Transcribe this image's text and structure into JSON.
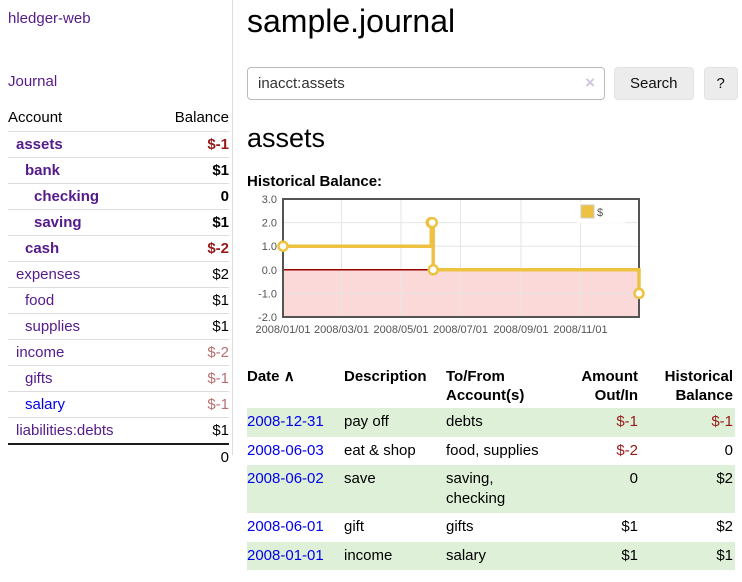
{
  "colors": {
    "link_visited": "#551A8B",
    "link_unvisited": "#0000EE",
    "negative_strong": "#971a1a",
    "negative_muted": "#b87070",
    "table_stripe": "#dff0d8",
    "series_gold": "#edc240",
    "zero_line": "#990000",
    "negative_region": "#fbd9d9",
    "chart_border": "#545454",
    "grid_line": "#e6e6e6"
  },
  "sidebar": {
    "brand": "hledger-web",
    "nav": [
      {
        "label": "Journal"
      }
    ],
    "table": {
      "headers": {
        "account": "Account",
        "balance": "Balance"
      },
      "accounts": [
        {
          "name": "assets",
          "depth": 0,
          "balance": "$-1",
          "emph": true,
          "balance_tone": "neg-strong",
          "link_tone": "visited"
        },
        {
          "name": "bank",
          "depth": 1,
          "balance": "$1",
          "emph": true,
          "balance_tone": "",
          "link_tone": "visited"
        },
        {
          "name": "checking",
          "depth": 2,
          "balance": "0",
          "emph": true,
          "balance_tone": "",
          "link_tone": "visited"
        },
        {
          "name": "saving",
          "depth": 2,
          "balance": "$1",
          "emph": true,
          "balance_tone": "",
          "link_tone": "visited"
        },
        {
          "name": "cash",
          "depth": 1,
          "balance": "$-2",
          "emph": true,
          "balance_tone": "neg-strong",
          "link_tone": "visited"
        },
        {
          "name": "expenses",
          "depth": 0,
          "balance": "$2",
          "emph": false,
          "balance_tone": "",
          "link_tone": "visited"
        },
        {
          "name": "food",
          "depth": 1,
          "balance": "$1",
          "emph": false,
          "balance_tone": "",
          "link_tone": "visited"
        },
        {
          "name": "supplies",
          "depth": 1,
          "balance": "$1",
          "emph": false,
          "balance_tone": "",
          "link_tone": "visited"
        },
        {
          "name": "income",
          "depth": 0,
          "balance": "$-2",
          "emph": false,
          "balance_tone": "neg-muted",
          "link_tone": "visited"
        },
        {
          "name": "gifts",
          "depth": 1,
          "balance": "$-1",
          "emph": false,
          "balance_tone": "neg-muted",
          "link_tone": "visited"
        },
        {
          "name": "salary",
          "depth": 1,
          "balance": "$-1",
          "emph": false,
          "balance_tone": "neg-muted",
          "link_tone": "unvisited"
        },
        {
          "name": "liabilities:debts",
          "depth": 0,
          "balance": "$1",
          "emph": false,
          "balance_tone": "",
          "link_tone": "visited"
        }
      ],
      "total": "0"
    }
  },
  "main": {
    "title": "sample.journal",
    "search": {
      "value": "inacct:assets",
      "clear_icon": "×",
      "search_button": "Search",
      "help_button": "?"
    },
    "account_heading": "assets",
    "chart_heading": "Historical Balance:"
  },
  "chart_data": {
    "type": "line",
    "step": true,
    "title": "Historical Balance:",
    "legend": [
      {
        "label": "$",
        "color": "#edc240"
      }
    ],
    "legend_position": "top-right",
    "grid": true,
    "ylim": [
      -2,
      3
    ],
    "yticks": [
      3.0,
      2.0,
      1.0,
      0.0,
      -1.0,
      -2.0
    ],
    "xticks": [
      "2008/01/01",
      "2008/03/01",
      "2008/05/01",
      "2008/07/01",
      "2008/09/01",
      "2008/11/01"
    ],
    "xrange": [
      "2008-01-01",
      "2008-12-31"
    ],
    "series": [
      {
        "name": "$",
        "points": [
          [
            "2008-01-01",
            1
          ],
          [
            "2008-06-01",
            2
          ],
          [
            "2008-06-02",
            2
          ],
          [
            "2008-06-03",
            0
          ],
          [
            "2008-12-31",
            -1
          ]
        ]
      }
    ],
    "markings": {
      "negative_region_below": 0,
      "zero_line_at": 0
    }
  },
  "register": {
    "headers": {
      "date": "Date",
      "sort_icon": "∧",
      "description": "Description",
      "accounts": "To/From Account(s)",
      "amount": "Amount Out/In",
      "balance": "Historical Balance"
    },
    "rows": [
      {
        "date": "2008-12-31",
        "description": "pay off",
        "accounts": "debts",
        "amount": "$-1",
        "amount_tone": "neg",
        "balance": "$-1",
        "balance_tone": "neg"
      },
      {
        "date": "2008-06-03",
        "description": "eat & shop",
        "accounts": "food, supplies",
        "amount": "$-2",
        "amount_tone": "neg",
        "balance": "0",
        "balance_tone": ""
      },
      {
        "date": "2008-06-02",
        "description": "save",
        "accounts": "saving, checking",
        "amount": "0",
        "amount_tone": "",
        "balance": "$2",
        "balance_tone": ""
      },
      {
        "date": "2008-06-01",
        "description": "gift",
        "accounts": "gifts",
        "amount": "$1",
        "amount_tone": "",
        "balance": "$2",
        "balance_tone": ""
      },
      {
        "date": "2008-01-01",
        "description": "income",
        "accounts": "salary",
        "amount": "$1",
        "amount_tone": "",
        "balance": "$1",
        "balance_tone": ""
      }
    ]
  }
}
